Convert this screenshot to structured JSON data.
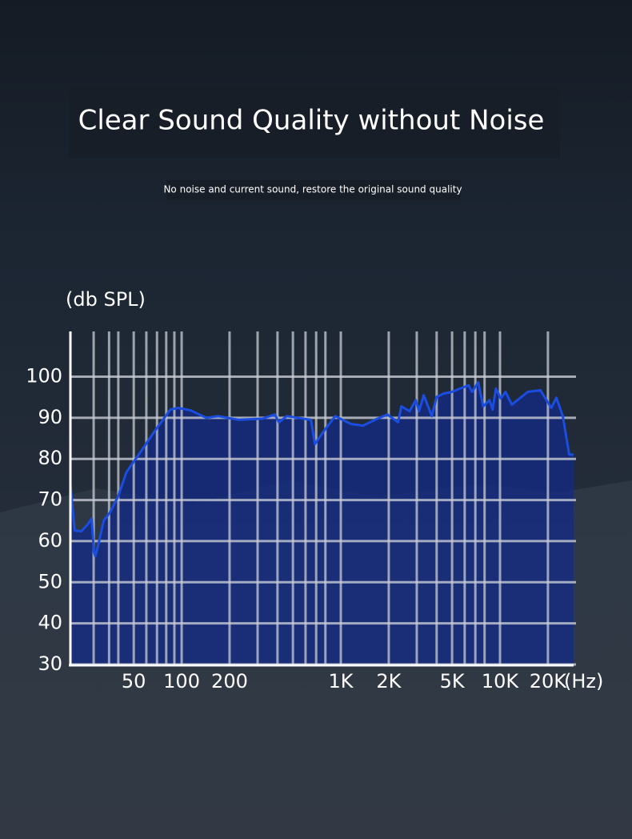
{
  "chart_data": {
    "type": "line",
    "title": "Clear Sound Quality without Noise",
    "subtitle": "No noise and current sound, restore the original sound quality",
    "ylabel": "(db SPL)",
    "xlabel": "(Hz)",
    "xscale": "log",
    "xlim": [
      20,
      29000
    ],
    "ylim": [
      30,
      111
    ],
    "yticks": [
      30,
      40,
      50,
      60,
      70,
      80,
      90,
      100
    ],
    "xticks": [
      50,
      100,
      200,
      {
        "value": 1000,
        "label": "1K"
      },
      {
        "value": 2000,
        "label": "2K"
      },
      {
        "value": 5000,
        "label": "5K"
      },
      {
        "value": 10000,
        "label": "10K"
      },
      {
        "value": 20000,
        "label": "20K"
      }
    ],
    "xminorticks": [
      28,
      35,
      40,
      60,
      70,
      80,
      90,
      300,
      400,
      500,
      600,
      700,
      800,
      3000,
      4000,
      6000,
      7000,
      8000
    ],
    "grid": true,
    "series": [
      {
        "color": "#1a4de0",
        "x": [
          20,
          21,
          21.3,
          23.4,
          25.6,
          27.2,
          28.1,
          28.7,
          30,
          32.4,
          35.5,
          40,
          45,
          53,
          67,
          85,
          95,
          114,
          143,
          170,
          228,
          323,
          385,
          408,
          458,
          649,
          688,
          773,
          922,
          1160,
          1380,
          1640,
          1960,
          2290,
          2400,
          2700,
          2960,
          3100,
          3320,
          3730,
          4000,
          4430,
          4980,
          5590,
          6360,
          6660,
          7300,
          7840,
          8590,
          8990,
          9420,
          10100,
          10830,
          11870,
          14940,
          17930,
          21000,
          22600,
          24800,
          27200,
          29000
        ],
        "values": [
          74,
          65,
          62.6,
          62.4,
          64,
          65.5,
          57.3,
          56.3,
          59.2,
          65,
          67,
          71,
          76.8,
          80.7,
          86.5,
          92,
          92.4,
          91.8,
          90,
          90.4,
          89.5,
          89.8,
          90.8,
          88.9,
          90.4,
          89.5,
          83.6,
          86.5,
          90.4,
          88.5,
          88.1,
          89.5,
          90.8,
          88.9,
          92.8,
          91.6,
          94.3,
          91.6,
          95.5,
          90.4,
          95.1,
          95.9,
          96.3,
          97.1,
          97.9,
          96.3,
          98.6,
          92.8,
          94.3,
          92,
          97.1,
          94.7,
          96.3,
          93.2,
          96.3,
          96.7,
          92.4,
          94.9,
          90.4,
          81.1,
          81
        ]
      }
    ]
  }
}
